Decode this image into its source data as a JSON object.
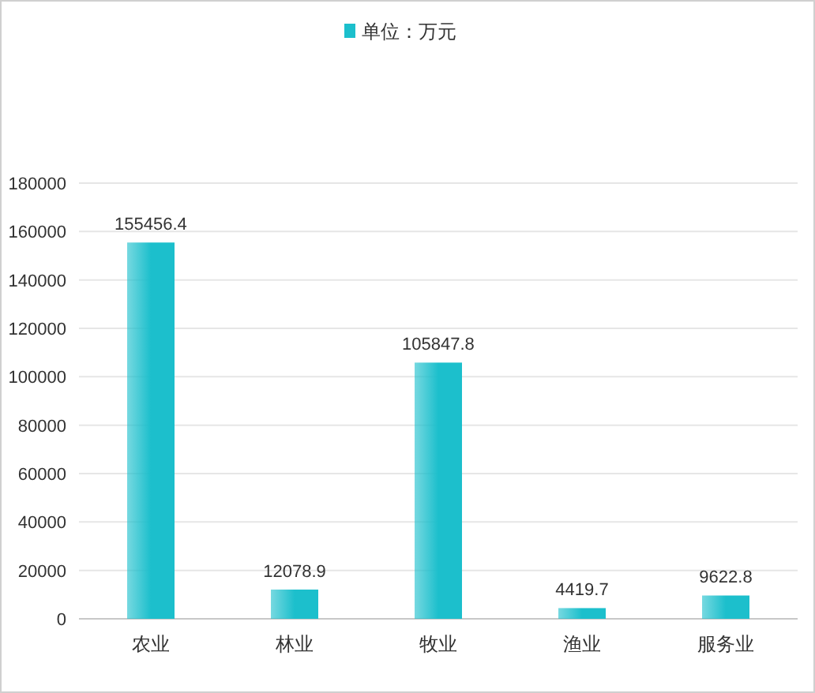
{
  "chart_data": {
    "type": "bar",
    "categories": [
      "农业",
      "林业",
      "牧业",
      "渔业",
      "服务业"
    ],
    "series": [
      {
        "name": "单位：万元",
        "color": "#1cbfcc",
        "values": [
          155456.4,
          12078.9,
          105847.8,
          4419.7,
          9622.8
        ]
      }
    ],
    "ylim": [
      0,
      180000
    ],
    "yticks": [
      0,
      20000,
      40000,
      60000,
      80000,
      100000,
      120000,
      140000,
      160000,
      180000
    ],
    "grid": "y",
    "legend": "top",
    "data_labels": true
  }
}
